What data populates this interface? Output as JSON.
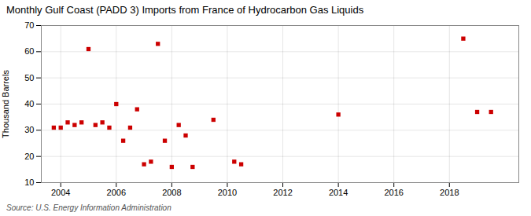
{
  "chart_data": {
    "type": "scatter",
    "title": "Monthly Gulf Coast (PADD 3) Imports from France of Hydrocarbon Gas Liquids",
    "ylabel": "Thousand Barrels",
    "source": "Source: U.S. Energy Information Administration",
    "x": [
      2003.75,
      2004.0,
      2004.25,
      2004.5,
      2004.75,
      2005.0,
      2005.25,
      2005.5,
      2005.75,
      2006.0,
      2006.25,
      2006.5,
      2006.75,
      2007.0,
      2007.25,
      2007.5,
      2007.75,
      2008.0,
      2008.25,
      2008.5,
      2008.75,
      2009.5,
      2010.25,
      2010.5,
      2014.0,
      2018.5,
      2019.0,
      2019.5
    ],
    "values": [
      31,
      31,
      33,
      32,
      33,
      61,
      32,
      33,
      31,
      40,
      26,
      31,
      38,
      17,
      18,
      63,
      26,
      16,
      32,
      28,
      16,
      34,
      18,
      17,
      36,
      65,
      37,
      37
    ],
    "color": "#cc0000",
    "marker": "square",
    "xlim": [
      2003.3,
      2020.5
    ],
    "xticks": [
      2004,
      2006,
      2008,
      2010,
      2012,
      2014,
      2016,
      2018
    ],
    "ylim": [
      10,
      70
    ],
    "yticks": [
      10,
      20,
      30,
      40,
      50,
      60,
      70
    ],
    "grid": true
  }
}
